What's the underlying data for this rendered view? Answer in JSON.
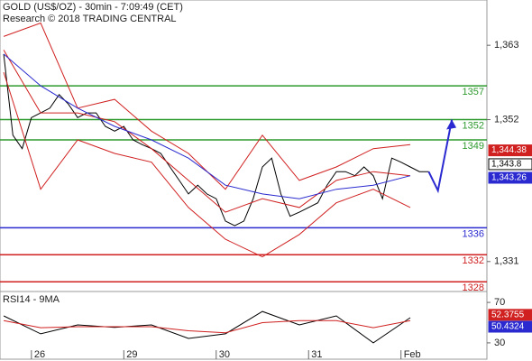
{
  "chart_data": [
    {
      "type": "line",
      "title": "GOLD (US$/OZ) - 30min - 7:09:49 (CET)",
      "subtitle": "Research © 2018 TRADING CENTRAL",
      "xlim": [
        -0.34,
        4.93
      ],
      "xticks": [
        {
          "value": 0,
          "label": "26"
        },
        {
          "value": 1,
          "label": "29"
        },
        {
          "value": 2,
          "label": "30"
        },
        {
          "value": 3,
          "label": "31"
        },
        {
          "value": 4,
          "label": "Feb"
        }
      ],
      "ylim": [
        1326.7,
        1369.7
      ],
      "yticks": [
        {
          "value": 1363,
          "label": "1,363"
        },
        {
          "value": 1352,
          "label": "1,352"
        },
        {
          "value": 1331,
          "label": "1,331"
        }
      ],
      "levels": [
        {
          "value": 1357,
          "color": "#2e9a2e"
        },
        {
          "value": 1352,
          "color": "#2e9a2e"
        },
        {
          "value": 1349,
          "color": "#2e9a2e"
        },
        {
          "value": 1336,
          "color": "#2a2ad0"
        },
        {
          "value": 1332,
          "color": "#d02020"
        },
        {
          "value": 1328,
          "color": "#d02020"
        }
      ],
      "series": [
        {
          "color": "#000000",
          "x": [
            -0.3,
            -0.2,
            -0.1,
            0,
            0.1,
            0.2,
            0.3,
            0.4,
            0.5,
            0.6,
            0.7,
            0.8,
            0.9,
            1,
            1.1,
            1.2,
            1.3,
            1.4,
            1.5,
            1.6,
            1.7,
            1.8,
            1.9,
            2,
            2.1,
            2.2,
            2.3,
            2.4,
            2.5,
            2.6,
            2.7,
            2.8,
            2.9,
            3,
            3.1,
            3.2,
            3.3,
            3.4,
            3.5,
            3.6,
            3.7,
            3.8,
            3.9,
            4,
            4.1,
            4.2,
            4.3
          ],
          "values": [
            1361.7,
            1349.7,
            1347.7,
            1352.3,
            1353,
            1353.7,
            1355.7,
            1354.3,
            1352.3,
            1353,
            1353,
            1351,
            1350.3,
            1351,
            1349,
            1348.3,
            1347.7,
            1347,
            1345,
            1343,
            1341,
            1342.3,
            1341,
            1340.3,
            1337,
            1336.3,
            1337,
            1340.3,
            1345,
            1346.3,
            1341,
            1337.7,
            1338.3,
            1339,
            1339.7,
            1342.3,
            1344.3,
            1344.3,
            1343.7,
            1345,
            1343.7,
            1340.3,
            1346.3,
            1345.7,
            1345,
            1344.3,
            1344.3
          ]
        },
        {
          "color": "#d02020",
          "x": [
            -0.3,
            0.1,
            0.5,
            0.9,
            1.3,
            1.7,
            2.1,
            2.5,
            2.9,
            3.3,
            3.7,
            4.1
          ],
          "values": [
            1364.3,
            1366.3,
            1353.7,
            1355,
            1350.3,
            1347,
            1341.7,
            1349.7,
            1343,
            1345,
            1347.7,
            1348.3
          ]
        },
        {
          "color": "#d02020",
          "x": [
            -0.3,
            0.1,
            0.5,
            0.9,
            1.3,
            1.7,
            2.1,
            2.5,
            2.9,
            3.3,
            3.7,
            4.1
          ],
          "values": [
            1359,
            1341.7,
            1349,
            1347,
            1345.7,
            1339,
            1334.3,
            1331.7,
            1335,
            1339.7,
            1341.7,
            1339
          ]
        },
        {
          "color": "#d02020",
          "x": [
            -0.3,
            0.1,
            0.5,
            0.9,
            1.3,
            1.7,
            2.1,
            2.5,
            2.9,
            3.3,
            3.7,
            4.1
          ],
          "values": [
            1362.3,
            1353,
            1353,
            1351.7,
            1347.7,
            1343,
            1338.3,
            1340.3,
            1339,
            1343,
            1344.3,
            1343.7
          ]
        },
        {
          "color": "#2a2ad0",
          "x": [
            -0.3,
            0.1,
            0.5,
            0.9,
            1.3,
            1.7,
            2.1,
            2.5,
            2.9,
            3.3,
            3.7,
            4.1
          ],
          "values": [
            1361.7,
            1357,
            1353.7,
            1351,
            1349,
            1346.3,
            1342.3,
            1341,
            1340.3,
            1341.7,
            1342.3,
            1343.7
          ]
        },
        {
          "color": "#2a2ad0",
          "x": [
            4.3,
            4.4,
            4.55
          ],
          "values": [
            1344.3,
            1341.5,
            1352
          ],
          "arrow": true
        }
      ],
      "price_labels": [
        {
          "value": 1344.38,
          "label": "1,344.38",
          "color": "#d02020"
        },
        {
          "value": 1343.8,
          "label": "1,343.8",
          "color": "#000000"
        },
        {
          "value": 1343.26,
          "label": "1,343.26",
          "color": "#2a2ad0"
        }
      ]
    },
    {
      "type": "line",
      "title": "RSI14 - 9MA",
      "xlim": [
        -0.34,
        4.93
      ],
      "ylim": [
        21,
        79
      ],
      "yticks": [
        70,
        30
      ],
      "series": [
        {
          "color": "#000000",
          "x": [
            -0.3,
            0.1,
            0.5,
            0.9,
            1.3,
            1.7,
            2.1,
            2.5,
            2.9,
            3.3,
            3.7,
            4.1
          ],
          "values": [
            56.7,
            38.9,
            47.8,
            45.3,
            47.8,
            34.4,
            38.9,
            61.1,
            47.8,
            56.7,
            30,
            54.9
          ]
        },
        {
          "color": "#d02020",
          "x": [
            -0.3,
            0.1,
            0.5,
            0.9,
            1.3,
            1.7,
            2.1,
            2.5,
            2.9,
            3.3,
            3.7,
            4.1
          ],
          "values": [
            52,
            45,
            46,
            46,
            46,
            42,
            40,
            50,
            52,
            52,
            45,
            52
          ]
        }
      ],
      "price_labels": [
        {
          "value": 52.3755,
          "label": "52.3755",
          "color": "#d02020"
        },
        {
          "value": 50.4324,
          "label": "50.4324",
          "color": "#2a2ad0"
        }
      ]
    }
  ]
}
